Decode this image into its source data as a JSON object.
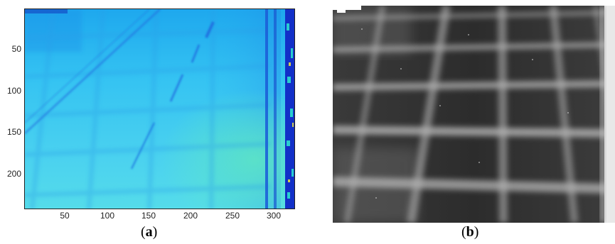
{
  "panel_a": {
    "y_ticks": [
      "50",
      "100",
      "150",
      "200"
    ],
    "x_ticks": [
      "50",
      "100",
      "150",
      "200",
      "250",
      "300"
    ],
    "caption_open": "(",
    "caption_letter": "a",
    "caption_close": ")"
  },
  "panel_b": {
    "caption_open": "(",
    "caption_letter": "b",
    "caption_close": ")"
  },
  "colors": {
    "thermal_base": "#33c4f0",
    "thermal_dark": "#1e6fe0",
    "thermal_edge": "#1230c8",
    "thermal_warm": "#3fe0b0",
    "gray_dark": "#2a2a2a",
    "gray_light": "#c8c8c8"
  }
}
